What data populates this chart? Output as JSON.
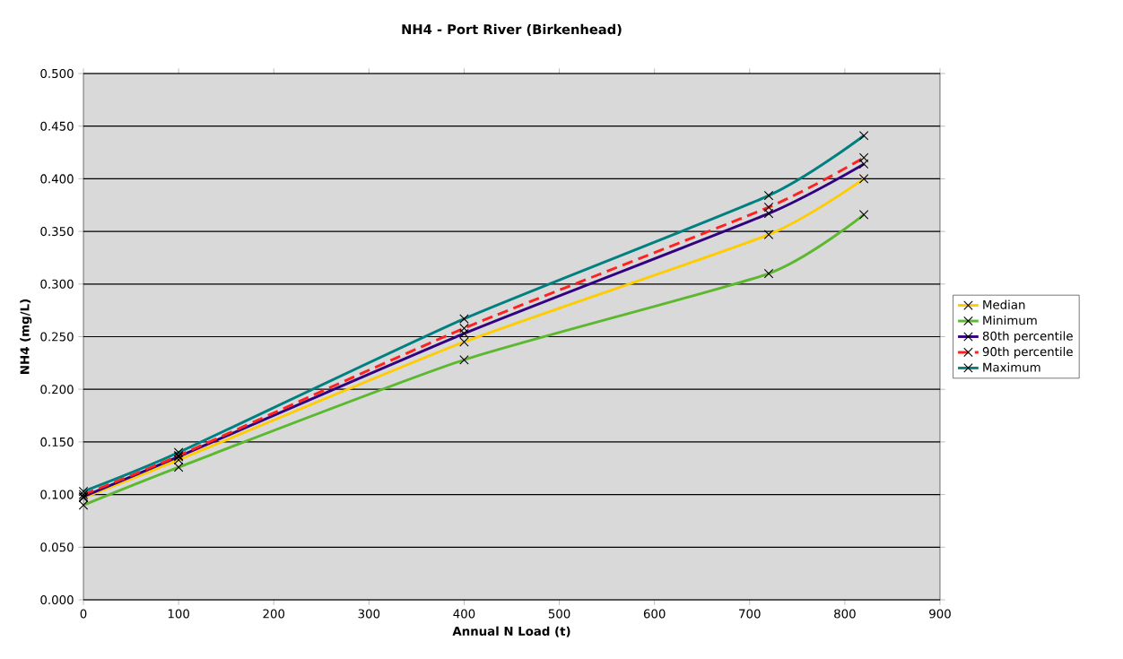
{
  "chart_data": {
    "type": "line",
    "title": "NH4 - Port River (Birkenhead)",
    "xlabel": "Annual N Load (t)",
    "ylabel": "NH4 (mg/L)",
    "x": [
      0,
      100,
      400,
      720,
      820
    ],
    "series": [
      {
        "name": "Median",
        "color": "#ffcc00",
        "values": [
          0.097,
          0.133,
          0.245,
          0.347,
          0.4
        ]
      },
      {
        "name": "Minimum",
        "color": "#5cb82e",
        "values": [
          0.09,
          0.126,
          0.228,
          0.31,
          0.366
        ]
      },
      {
        "name": "80th percentile",
        "color": "#330080",
        "values": [
          0.098,
          0.136,
          0.253,
          0.367,
          0.414
        ]
      },
      {
        "name": "90th percentile",
        "color": "#ff2020",
        "line_style": "dashed",
        "values": [
          0.1,
          0.137,
          0.258,
          0.373,
          0.42
        ]
      },
      {
        "name": "Maximum",
        "color": "#008080",
        "values": [
          0.103,
          0.14,
          0.267,
          0.384,
          0.441
        ]
      }
    ],
    "xlim": [
      0,
      900
    ],
    "xticks": [
      0,
      100,
      200,
      300,
      400,
      500,
      600,
      700,
      800,
      900
    ],
    "ylim": [
      0,
      0.5
    ],
    "yticks": [
      {
        "value": 0,
        "label": "0.000"
      },
      {
        "value": 0.05,
        "label": "0.050"
      },
      {
        "value": 0.1,
        "label": "0.100"
      },
      {
        "value": 0.15,
        "label": "0.150"
      },
      {
        "value": 0.2,
        "label": "0.200"
      },
      {
        "value": 0.25,
        "label": "0.250"
      },
      {
        "value": 0.3,
        "label": "0.300"
      },
      {
        "value": 0.35,
        "label": "0.350"
      },
      {
        "value": 0.4,
        "label": "0.400"
      },
      {
        "value": 0.45,
        "label": "0.450"
      },
      {
        "value": 0.5,
        "label": "0.500"
      }
    ],
    "grid": "y",
    "legend": "right",
    "marker": "cross",
    "line_style": "solid"
  }
}
